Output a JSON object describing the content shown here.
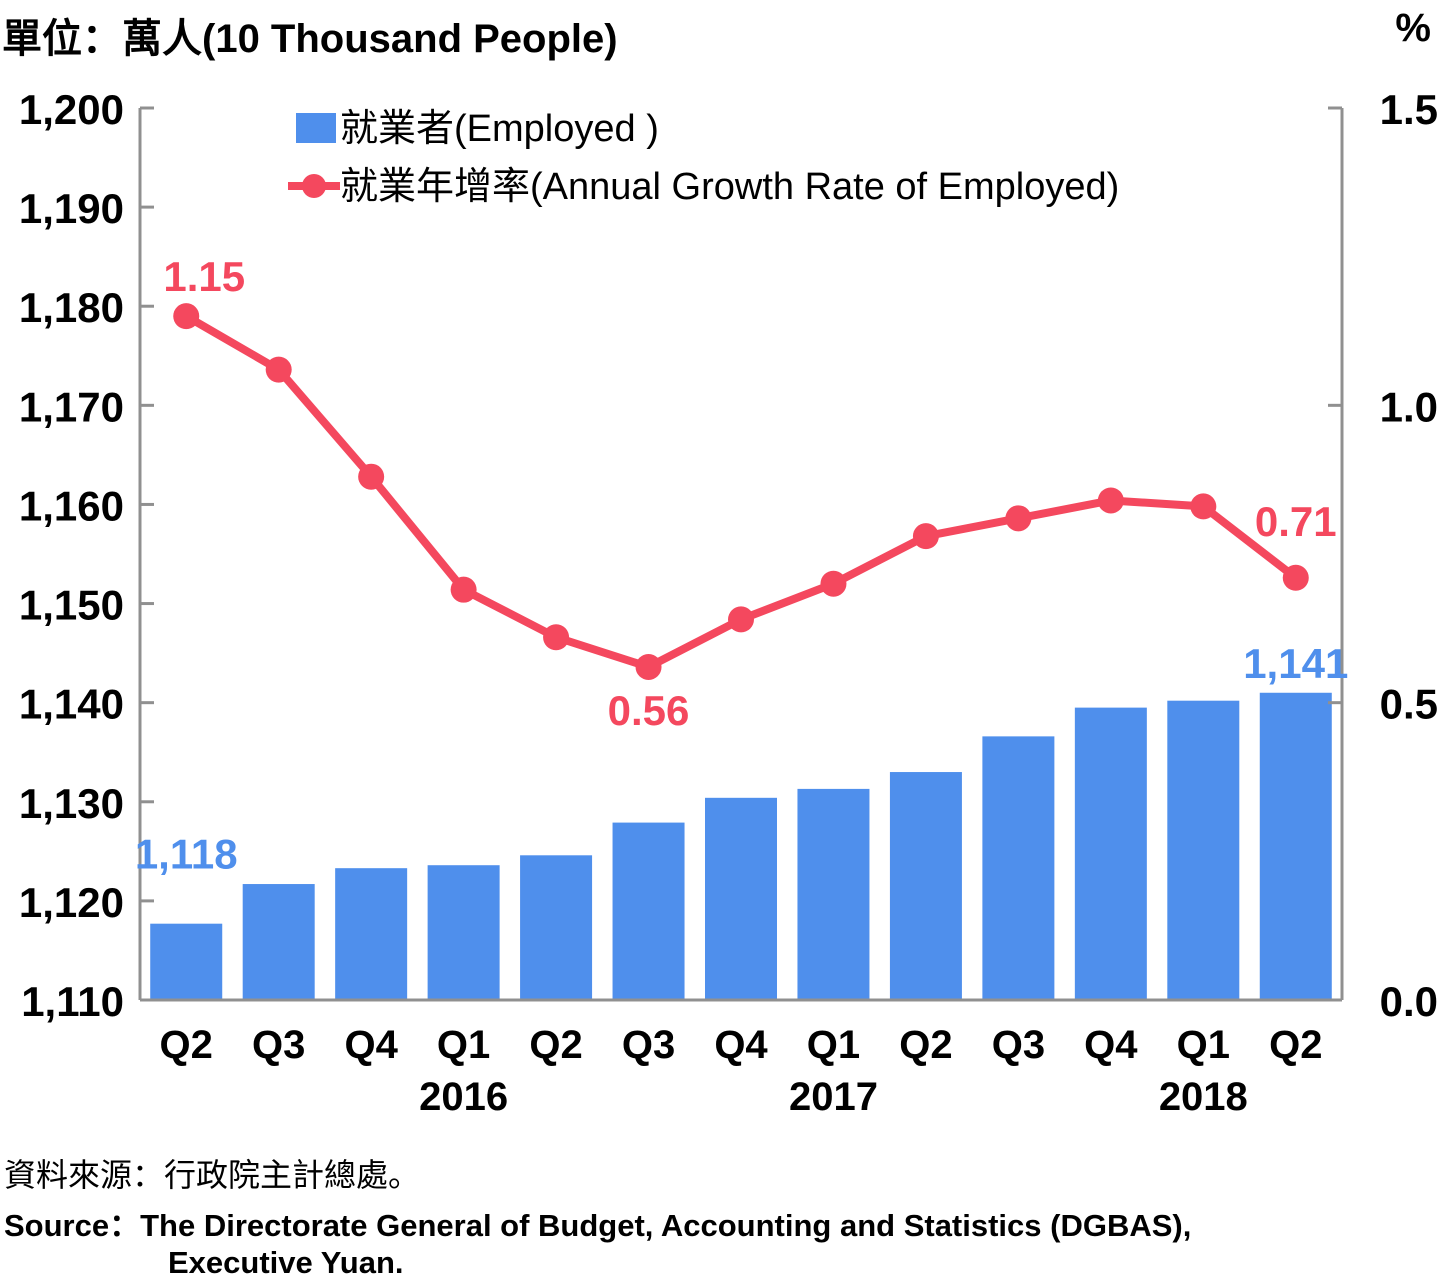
{
  "unit_left": "單位：萬人(10 Thousand People)",
  "unit_right": "%",
  "source_zh": "資料來源：行政院主計總處。",
  "source_en": "Source：The Directorate General of Budget, Accounting and Statistics (DGBAS),",
  "source_en_2": "Executive Yuan.",
  "colors": {
    "bar": "#4F8FEC",
    "line": "#F4485E",
    "axis": "#909090"
  },
  "chart_data": {
    "type": "bar",
    "categories": [
      "Q2",
      "Q3",
      "Q4",
      "Q1",
      "Q2",
      "Q3",
      "Q4",
      "Q1",
      "Q2",
      "Q3",
      "Q4",
      "Q1",
      "Q2"
    ],
    "years": [
      {
        "label": "2016",
        "center_index": 3
      },
      {
        "label": "2017",
        "center_index": 7
      },
      {
        "label": "2018",
        "center_index": 11
      }
    ],
    "series": [
      {
        "name": "就業者(Employed )",
        "type": "bar",
        "axis": "left",
        "values": [
          1117.7,
          1121.7,
          1123.3,
          1123.6,
          1124.6,
          1127.9,
          1130.4,
          1131.3,
          1133.0,
          1136.6,
          1139.5,
          1140.2,
          1141.0
        ]
      },
      {
        "name": "就業年增率(Annual Growth Rate of Employed)",
        "type": "line",
        "axis": "right",
        "values": [
          1.15,
          1.06,
          0.88,
          0.69,
          0.61,
          0.56,
          0.64,
          0.7,
          0.78,
          0.81,
          0.84,
          0.83,
          0.71
        ]
      }
    ],
    "data_labels": [
      {
        "series": 0,
        "index": 0,
        "text": "1,118"
      },
      {
        "series": 0,
        "index": 12,
        "text": "1,141"
      },
      {
        "series": 1,
        "index": 0,
        "text": "1.15"
      },
      {
        "series": 1,
        "index": 5,
        "text": "0.56"
      },
      {
        "series": 1,
        "index": 12,
        "text": "0.71"
      }
    ],
    "y_left": {
      "min": 1110,
      "max": 1200,
      "ticks": [
        1110,
        1120,
        1130,
        1140,
        1150,
        1160,
        1170,
        1180,
        1190,
        1200
      ],
      "tick_labels": [
        "1,110",
        "1,120",
        "1,130",
        "1,140",
        "1,150",
        "1,160",
        "1,170",
        "1,180",
        "1,190",
        "1,200"
      ]
    },
    "y_right": {
      "min": 0.0,
      "max": 1.5,
      "ticks": [
        0.0,
        0.5,
        1.0,
        1.5
      ],
      "tick_labels": [
        "0.0",
        "0.5",
        "1.0",
        "1.5"
      ]
    },
    "legend_position": "top-left",
    "grid": false
  }
}
